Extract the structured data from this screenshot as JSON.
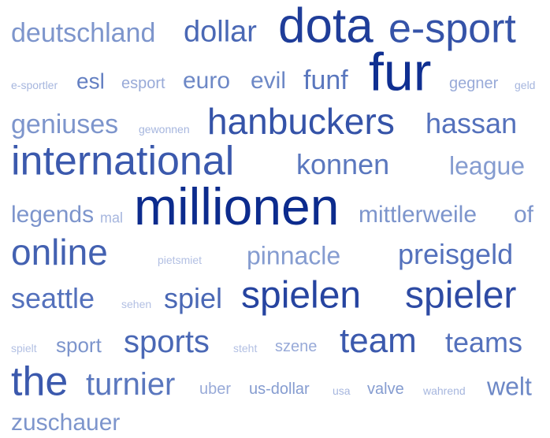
{
  "words": [
    {
      "text": "deutschland",
      "color": "#7d95cc"
    },
    {
      "text": "dollar",
      "color": "#4a68b5"
    },
    {
      "text": "dota",
      "color": "#1f3d99"
    },
    {
      "text": "e-sport",
      "color": "#3553a8"
    },
    {
      "text": "e-sportler",
      "color": "#a6b6de"
    },
    {
      "text": "esl",
      "color": "#6480c2"
    },
    {
      "text": "esport",
      "color": "#98aad8"
    },
    {
      "text": "euro",
      "color": "#6d88c6"
    },
    {
      "text": "evil",
      "color": "#6d88c6"
    },
    {
      "text": "funf",
      "color": "#5a77be"
    },
    {
      "text": "fur",
      "color": "#0f2f91"
    },
    {
      "text": "gegner",
      "color": "#98aad8"
    },
    {
      "text": "geld",
      "color": "#a6b6de"
    },
    {
      "text": "geniuses",
      "color": "#7d95cc"
    },
    {
      "text": "gewonnen",
      "color": "#a6b6de"
    },
    {
      "text": "hanbuckers",
      "color": "#3553a8"
    },
    {
      "text": "hassan",
      "color": "#5471bc"
    },
    {
      "text": "international",
      "color": "#3b59ad"
    },
    {
      "text": "konnen",
      "color": "#5a77be"
    },
    {
      "text": "league",
      "color": "#859cd0"
    },
    {
      "text": "legends",
      "color": "#7d95cc"
    },
    {
      "text": "mal",
      "color": "#a6b6de"
    },
    {
      "text": "millionen",
      "color": "#0c2b8d"
    },
    {
      "text": "mittlerweile",
      "color": "#7d95cc"
    },
    {
      "text": "of",
      "color": "#7d95cc"
    },
    {
      "text": "online",
      "color": "#4361b1"
    },
    {
      "text": "pietsmiet",
      "color": "#b3c0e3"
    },
    {
      "text": "pinnacle",
      "color": "#859cd0"
    },
    {
      "text": "preisgeld",
      "color": "#5471bc"
    },
    {
      "text": "seattle",
      "color": "#5471bc"
    },
    {
      "text": "sehen",
      "color": "#b3c0e3"
    },
    {
      "text": "spiel",
      "color": "#4a68b5"
    },
    {
      "text": "spielen",
      "color": "#2644a0"
    },
    {
      "text": "spieler",
      "color": "#2e4ba4"
    },
    {
      "text": "spielt",
      "color": "#b3c0e3"
    },
    {
      "text": "sport",
      "color": "#7d95cc"
    },
    {
      "text": "sports",
      "color": "#4a68b5"
    },
    {
      "text": "steht",
      "color": "#b3c0e3"
    },
    {
      "text": "szene",
      "color": "#98aad8"
    },
    {
      "text": "team",
      "color": "#3b59ad"
    },
    {
      "text": "teams",
      "color": "#5471bc"
    },
    {
      "text": "the",
      "color": "#3b59ad"
    },
    {
      "text": "turnier",
      "color": "#5a77be"
    },
    {
      "text": "uber",
      "color": "#98aad8"
    },
    {
      "text": "us-dollar",
      "color": "#859cd0"
    },
    {
      "text": "usa",
      "color": "#a6b6de"
    },
    {
      "text": "valve",
      "color": "#859cd0"
    },
    {
      "text": "wahrend",
      "color": "#a6b6de"
    },
    {
      "text": "welt",
      "color": "#6d88c6"
    },
    {
      "text": "zuschauer",
      "color": "#7d95cc"
    }
  ]
}
